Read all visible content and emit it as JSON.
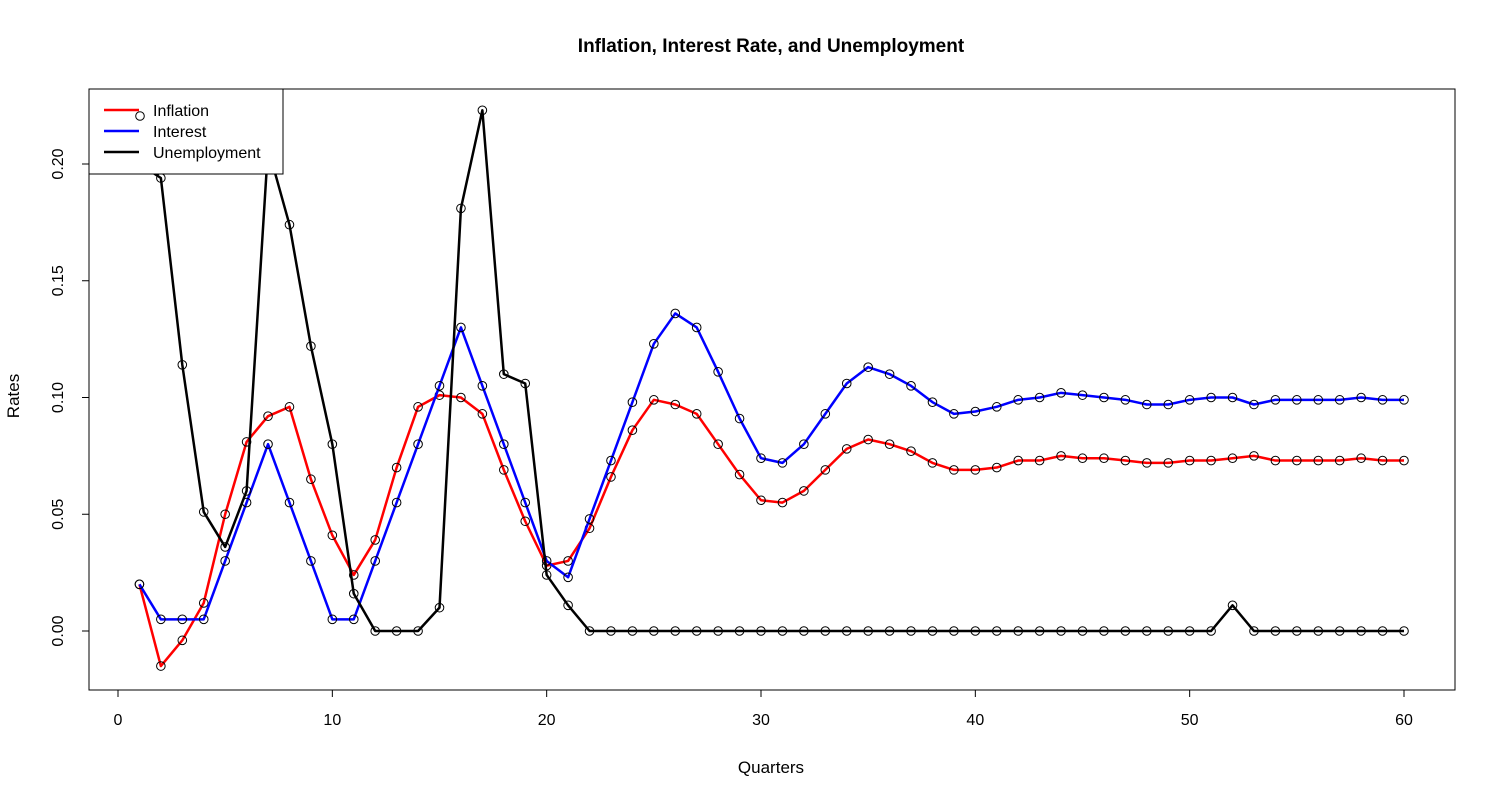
{
  "chart_data": {
    "type": "line",
    "title": "Inflation, Interest Rate, and Unemployment",
    "xlabel": "Quarters",
    "ylabel": "Rates",
    "xlim": [
      0,
      60
    ],
    "ylim": [
      -0.025,
      0.225
    ],
    "xticks": [
      "0",
      "10",
      "20",
      "30",
      "40",
      "50",
      "60"
    ],
    "yticks": [
      "0.00",
      "0.05",
      "0.10",
      "0.15",
      "0.20"
    ],
    "legend_placement": "top-left",
    "markers": "open-circle",
    "grid": false,
    "x": [
      1,
      2,
      3,
      4,
      5,
      6,
      7,
      8,
      9,
      10,
      11,
      12,
      13,
      14,
      15,
      16,
      17,
      18,
      19,
      20,
      21,
      22,
      23,
      24,
      25,
      26,
      27,
      28,
      29,
      30,
      31,
      32,
      33,
      34,
      35,
      36,
      37,
      38,
      39,
      40,
      41,
      42,
      43,
      44,
      45,
      46,
      47,
      48,
      49,
      50,
      51,
      52,
      53,
      54,
      55,
      56,
      57,
      58,
      59,
      60
    ],
    "series": [
      {
        "name": "Inflation",
        "color": "#ff0000",
        "values": [
          0.02,
          -0.015,
          -0.004,
          0.012,
          0.05,
          0.081,
          0.092,
          0.096,
          0.065,
          0.041,
          0.024,
          0.039,
          0.07,
          0.096,
          0.101,
          0.1,
          0.093,
          0.069,
          0.047,
          0.028,
          0.03,
          0.044,
          0.066,
          0.086,
          0.099,
          0.097,
          0.093,
          0.08,
          0.067,
          0.056,
          0.055,
          0.06,
          0.069,
          0.078,
          0.082,
          0.08,
          0.077,
          0.072,
          0.069,
          0.069,
          0.07,
          0.073,
          0.073,
          0.075,
          0.074,
          0.074,
          0.073,
          0.072,
          0.072,
          0.073,
          0.073,
          0.074,
          0.075,
          0.073,
          0.073,
          0.073,
          0.073,
          0.074,
          0.073,
          0.073
        ]
      },
      {
        "name": "Interest",
        "color": "#0000ff",
        "values": [
          0.02,
          0.005,
          0.005,
          0.005,
          0.03,
          0.055,
          0.08,
          0.055,
          0.03,
          0.005,
          0.005,
          0.03,
          0.055,
          0.08,
          0.105,
          0.13,
          0.105,
          0.08,
          0.055,
          0.03,
          0.023,
          0.048,
          0.073,
          0.098,
          0.123,
          0.136,
          0.13,
          0.111,
          0.091,
          0.074,
          0.072,
          0.08,
          0.093,
          0.106,
          0.113,
          0.11,
          0.105,
          0.098,
          0.093,
          0.094,
          0.096,
          0.099,
          0.1,
          0.102,
          0.101,
          0.1,
          0.099,
          0.097,
          0.097,
          0.099,
          0.1,
          0.1,
          0.097,
          0.099,
          0.099,
          0.099,
          0.099,
          0.1,
          0.099,
          0.099
        ]
      },
      {
        "name": "Unemployment",
        "color": "#000000",
        "values": [
          0.2,
          0.194,
          0.114,
          0.051,
          0.036,
          0.06,
          0.207,
          0.174,
          0.122,
          0.08,
          0.016,
          0.0,
          0.0,
          0.0,
          0.01,
          0.181,
          0.223,
          0.11,
          0.106,
          0.024,
          0.011,
          0.0,
          0.0,
          0.0,
          0.0,
          0.0,
          0.0,
          0.0,
          0.0,
          0.0,
          0.0,
          0.0,
          0.0,
          0.0,
          0.0,
          0.0,
          0.0,
          0.0,
          0.0,
          0.0,
          0.0,
          0.0,
          0.0,
          0.0,
          0.0,
          0.0,
          0.0,
          0.0,
          0.0,
          0.0,
          0.0,
          0.011,
          0.0,
          0.0,
          0.0,
          0.0,
          0.0,
          0.0,
          0.0,
          0.0
        ]
      }
    ]
  }
}
